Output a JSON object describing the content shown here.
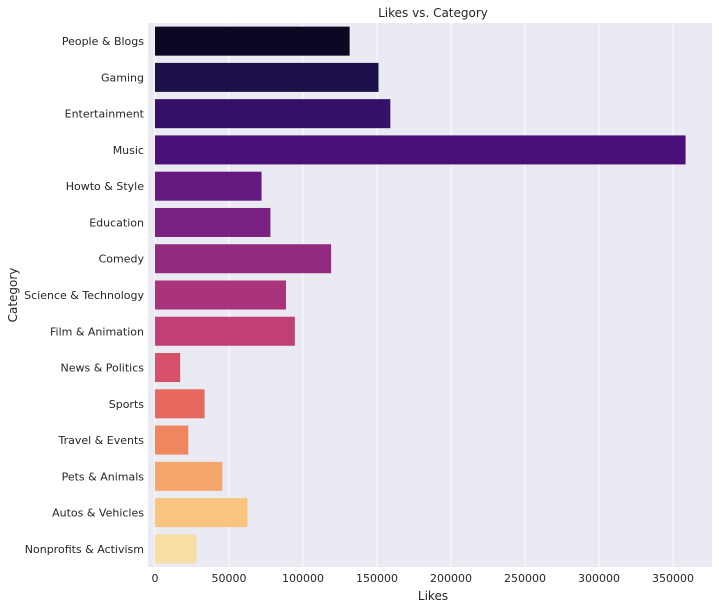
{
  "chart_data": {
    "type": "bar",
    "orientation": "horizontal",
    "title": "Likes vs. Category",
    "xlabel": "Likes",
    "ylabel": "Category",
    "xlim": [
      0,
      375000
    ],
    "x_ticks": [
      0,
      50000,
      100000,
      150000,
      200000,
      250000,
      300000,
      350000
    ],
    "x_tick_labels": [
      "0",
      "50000",
      "100000",
      "150000",
      "200000",
      "250000",
      "300000",
      "350000"
    ],
    "grid": "vertical",
    "palette": "magma",
    "categories": [
      "People & Blogs",
      "Gaming",
      "Entertainment",
      "Music",
      "Howto & Style",
      "Education",
      "Comedy",
      "Science & Technology",
      "Film & Animation",
      "News & Politics",
      "Sports",
      "Travel & Events",
      "Pets & Animals",
      "Autos & Vehicles",
      "Nonprofits & Activism"
    ],
    "values": [
      131500,
      151000,
      159000,
      358500,
      72000,
      78000,
      119000,
      88500,
      94500,
      17000,
      33500,
      22500,
      45500,
      62500,
      28000
    ],
    "colors": [
      "#0a0822",
      "#1e1149",
      "#341069",
      "#4c1179",
      "#63197f",
      "#7a2181",
      "#922a80",
      "#aa347b",
      "#c23f73",
      "#d75069",
      "#e6685f",
      "#f0865e",
      "#f5a66c",
      "#f8c480",
      "#f7dea4"
    ]
  }
}
